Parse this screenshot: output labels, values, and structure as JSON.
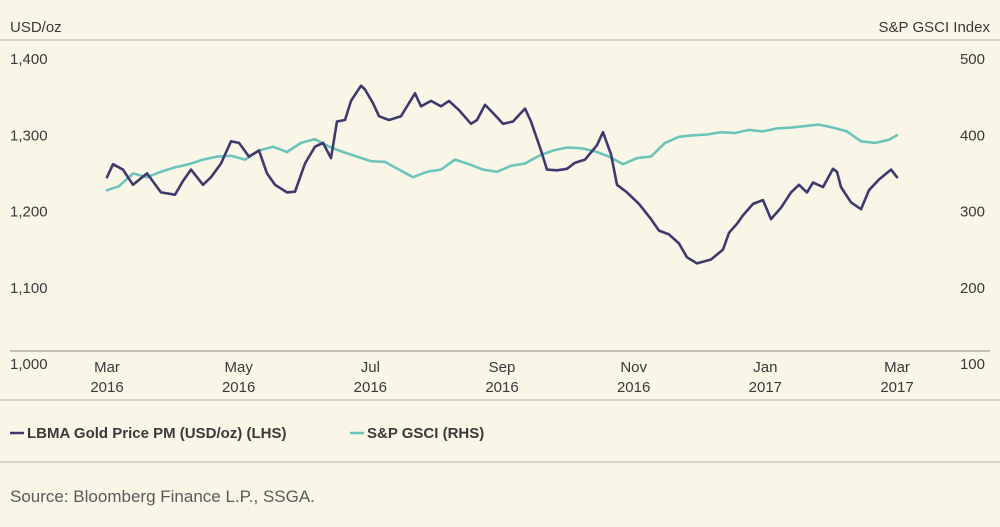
{
  "chart_data": {
    "type": "line",
    "left_axis_label": "USD/oz",
    "right_axis_label": "S&P GSCI Index",
    "left_ylim": [
      1000,
      1400
    ],
    "right_ylim": [
      100,
      500
    ],
    "left_ticks": [
      "1,400",
      "1,300",
      "1,200",
      "1,100",
      "1,000"
    ],
    "right_ticks": [
      "500",
      "400",
      "300",
      "200",
      "100"
    ],
    "x_ticks": [
      {
        "month": "Mar",
        "year": "2016"
      },
      {
        "month": "May",
        "year": "2016"
      },
      {
        "month": "Jul",
        "year": "2016"
      },
      {
        "month": "Sep",
        "year": "2016"
      },
      {
        "month": "Nov",
        "year": "2016"
      },
      {
        "month": "Jan",
        "year": "2017"
      },
      {
        "month": "Mar",
        "year": "2017"
      }
    ],
    "series": [
      {
        "name": "LBMA Gold Price PM (USD/oz) (LHS)",
        "axis": "left",
        "color": "#3d3a6e",
        "points": [
          [
            "2016-03-01",
            1245
          ],
          [
            "2016-03-04",
            1262
          ],
          [
            "2016-03-09",
            1255
          ],
          [
            "2016-03-14",
            1235
          ],
          [
            "2016-03-21",
            1250
          ],
          [
            "2016-03-28",
            1225
          ],
          [
            "2016-04-04",
            1222
          ],
          [
            "2016-04-08",
            1240
          ],
          [
            "2016-04-12",
            1255
          ],
          [
            "2016-04-18",
            1235
          ],
          [
            "2016-04-22",
            1245
          ],
          [
            "2016-04-27",
            1263
          ],
          [
            "2016-05-02",
            1292
          ],
          [
            "2016-05-06",
            1290
          ],
          [
            "2016-05-11",
            1272
          ],
          [
            "2016-05-16",
            1280
          ],
          [
            "2016-05-20",
            1250
          ],
          [
            "2016-05-24",
            1235
          ],
          [
            "2016-05-30",
            1225
          ],
          [
            "2016-06-03",
            1226
          ],
          [
            "2016-06-08",
            1263
          ],
          [
            "2016-06-13",
            1285
          ],
          [
            "2016-06-17",
            1290
          ],
          [
            "2016-06-21",
            1270
          ],
          [
            "2016-06-24",
            1318
          ],
          [
            "2016-06-28",
            1320
          ],
          [
            "2016-07-01",
            1345
          ],
          [
            "2016-07-06",
            1365
          ],
          [
            "2016-07-08",
            1360
          ],
          [
            "2016-07-12",
            1342
          ],
          [
            "2016-07-15",
            1325
          ],
          [
            "2016-07-20",
            1320
          ],
          [
            "2016-07-26",
            1325
          ],
          [
            "2016-08-02",
            1355
          ],
          [
            "2016-08-05",
            1338
          ],
          [
            "2016-08-10",
            1345
          ],
          [
            "2016-08-15",
            1338
          ],
          [
            "2016-08-19",
            1345
          ],
          [
            "2016-08-24",
            1333
          ],
          [
            "2016-08-30",
            1315
          ],
          [
            "2016-09-02",
            1320
          ],
          [
            "2016-09-06",
            1340
          ],
          [
            "2016-09-09",
            1332
          ],
          [
            "2016-09-15",
            1315
          ],
          [
            "2016-09-20",
            1318
          ],
          [
            "2016-09-26",
            1335
          ],
          [
            "2016-09-29",
            1318
          ],
          [
            "2016-10-04",
            1280
          ],
          [
            "2016-10-07",
            1255
          ],
          [
            "2016-10-12",
            1254
          ],
          [
            "2016-10-17",
            1256
          ],
          [
            "2016-10-21",
            1264
          ],
          [
            "2016-10-26",
            1268
          ],
          [
            "2016-11-01",
            1287
          ],
          [
            "2016-11-04",
            1304
          ],
          [
            "2016-11-08",
            1275
          ],
          [
            "2016-11-11",
            1235
          ],
          [
            "2016-11-16",
            1225
          ],
          [
            "2016-11-22",
            1210
          ],
          [
            "2016-11-28",
            1190
          ],
          [
            "2016-12-02",
            1175
          ],
          [
            "2016-12-07",
            1170
          ],
          [
            "2016-12-12",
            1158
          ],
          [
            "2016-12-16",
            1140
          ],
          [
            "2016-12-21",
            1132
          ],
          [
            "2016-12-28",
            1137
          ],
          [
            "2017-01-03",
            1150
          ],
          [
            "2017-01-06",
            1172
          ],
          [
            "2017-01-10",
            1184
          ],
          [
            "2017-01-13",
            1195
          ],
          [
            "2017-01-18",
            1210
          ],
          [
            "2017-01-23",
            1215
          ],
          [
            "2017-01-27",
            1190
          ],
          [
            "2017-02-01",
            1205
          ],
          [
            "2017-02-06",
            1225
          ],
          [
            "2017-02-10",
            1235
          ],
          [
            "2017-02-14",
            1225
          ],
          [
            "2017-02-17",
            1238
          ],
          [
            "2017-02-22",
            1232
          ],
          [
            "2017-02-27",
            1256
          ],
          [
            "2017-03-01",
            1252
          ],
          [
            "2017-03-03",
            1232
          ],
          [
            "2017-03-08",
            1212
          ],
          [
            "2017-03-13",
            1203
          ],
          [
            "2017-03-17",
            1228
          ],
          [
            "2017-03-22",
            1242
          ],
          [
            "2017-03-28",
            1255
          ],
          [
            "2017-03-31",
            1245
          ]
        ]
      },
      {
        "name": "S&P GSCI (RHS)",
        "axis": "right",
        "color": "#6cc4ba",
        "points": [
          [
            "2016-03-01",
            328
          ],
          [
            "2016-03-07",
            333
          ],
          [
            "2016-03-14",
            350
          ],
          [
            "2016-03-21",
            345
          ],
          [
            "2016-03-28",
            352
          ],
          [
            "2016-04-04",
            358
          ],
          [
            "2016-04-11",
            362
          ],
          [
            "2016-04-18",
            368
          ],
          [
            "2016-04-25",
            372
          ],
          [
            "2016-05-02",
            373
          ],
          [
            "2016-05-09",
            368
          ],
          [
            "2016-05-16",
            380
          ],
          [
            "2016-05-23",
            385
          ],
          [
            "2016-05-30",
            378
          ],
          [
            "2016-06-06",
            390
          ],
          [
            "2016-06-13",
            395
          ],
          [
            "2016-06-20",
            385
          ],
          [
            "2016-06-27",
            378
          ],
          [
            "2016-07-04",
            372
          ],
          [
            "2016-07-11",
            366
          ],
          [
            "2016-07-18",
            365
          ],
          [
            "2016-07-25",
            355
          ],
          [
            "2016-08-01",
            345
          ],
          [
            "2016-08-08",
            352
          ],
          [
            "2016-08-15",
            355
          ],
          [
            "2016-08-22",
            368
          ],
          [
            "2016-08-29",
            362
          ],
          [
            "2016-09-05",
            355
          ],
          [
            "2016-09-12",
            352
          ],
          [
            "2016-09-19",
            360
          ],
          [
            "2016-09-26",
            363
          ],
          [
            "2016-10-03",
            373
          ],
          [
            "2016-10-10",
            380
          ],
          [
            "2016-10-17",
            384
          ],
          [
            "2016-10-24",
            383
          ],
          [
            "2016-10-31",
            379
          ],
          [
            "2016-11-07",
            372
          ],
          [
            "2016-11-14",
            362
          ],
          [
            "2016-11-21",
            370
          ],
          [
            "2016-11-28",
            372
          ],
          [
            "2016-12-05",
            390
          ],
          [
            "2016-12-12",
            398
          ],
          [
            "2016-12-19",
            400
          ],
          [
            "2016-12-26",
            401
          ],
          [
            "2017-01-02",
            404
          ],
          [
            "2017-01-09",
            403
          ],
          [
            "2017-01-16",
            407
          ],
          [
            "2017-01-23",
            405
          ],
          [
            "2017-01-30",
            409
          ],
          [
            "2017-02-06",
            410
          ],
          [
            "2017-02-13",
            412
          ],
          [
            "2017-02-20",
            414
          ],
          [
            "2017-02-27",
            410
          ],
          [
            "2017-03-06",
            405
          ],
          [
            "2017-03-13",
            392
          ],
          [
            "2017-03-20",
            390
          ],
          [
            "2017-03-27",
            394
          ],
          [
            "2017-03-31",
            400
          ]
        ]
      }
    ],
    "legend": [
      {
        "label": "LBMA Gold Price PM (USD/oz) (LHS)",
        "color": "#3d3a6e"
      },
      {
        "label": "S&P GSCI (RHS)",
        "color": "#6cc4ba"
      }
    ],
    "x_range": [
      "2016-03-01",
      "2017-03-31"
    ],
    "grid": false
  },
  "source": "Source: Bloomberg Finance L.P., SSGA."
}
